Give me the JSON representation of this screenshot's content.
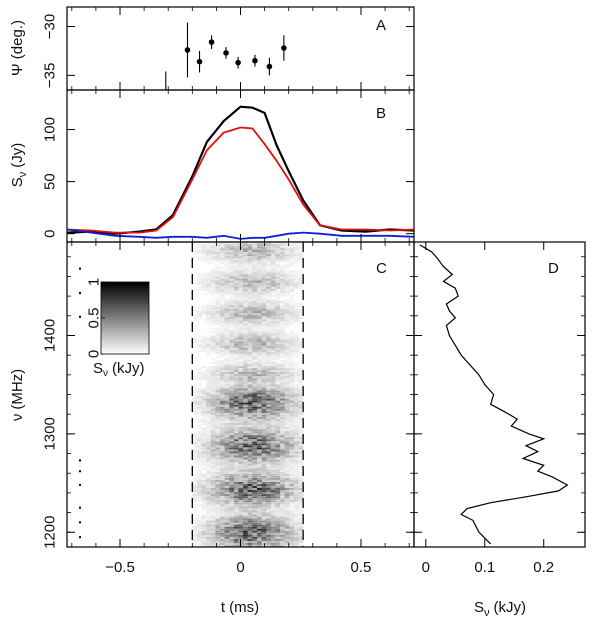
{
  "colors": {
    "total": "#000000",
    "linear": "#e01010",
    "circular": "#1020d0",
    "frame": "#000000"
  },
  "chart_data": [
    {
      "panel": "A",
      "type": "scatter",
      "xlabel": "",
      "ylabel": "Ψ (deg.)",
      "ylim": [
        -36.5,
        -28.0
      ],
      "yticks": [
        -30,
        -35
      ],
      "ytick_labels": [
        "−30",
        "−35"
      ],
      "points": [
        {
          "t": -0.22,
          "psi": -32.4,
          "err": 2.8
        },
        {
          "t": -0.17,
          "psi": -33.6,
          "err": 1.1
        },
        {
          "t": -0.12,
          "psi": -31.6,
          "err": 0.7
        },
        {
          "t": -0.06,
          "psi": -32.7,
          "err": 0.6
        },
        {
          "t": -0.01,
          "psi": -33.7,
          "err": 0.6
        },
        {
          "t": 0.06,
          "psi": -33.5,
          "err": 0.6
        },
        {
          "t": 0.12,
          "psi": -34.1,
          "err": 0.9
        },
        {
          "t": 0.18,
          "psi": -32.2,
          "err": 1.3
        }
      ]
    },
    {
      "panel": "B",
      "type": "line",
      "xlabel": "",
      "ylabel": "Sν (Jy)",
      "ylim": [
        -8,
        138
      ],
      "yticks": [
        0,
        50,
        100
      ],
      "ytick_labels": [
        "0",
        "50",
        "100"
      ],
      "x": [
        -0.72,
        -0.62,
        -0.52,
        -0.42,
        -0.35,
        -0.28,
        -0.2,
        -0.14,
        -0.07,
        0.0,
        0.05,
        0.1,
        0.15,
        0.2,
        0.26,
        0.33,
        0.42,
        0.52,
        0.62,
        0.72
      ],
      "series": [
        {
          "key": "total",
          "values": [
            1,
            2,
            0,
            2,
            4,
            18,
            55,
            88,
            108,
            122,
            121,
            116,
            85,
            60,
            32,
            8,
            3,
            2,
            4,
            3
          ]
        },
        {
          "key": "linear",
          "values": [
            4,
            3,
            1,
            1,
            3,
            16,
            52,
            80,
            97,
            102,
            101,
            86,
            70,
            52,
            28,
            8,
            4,
            4,
            3,
            4
          ]
        },
        {
          "key": "circular",
          "values": [
            4,
            1,
            -2,
            -3,
            -4,
            -3,
            -3,
            -4,
            -2,
            -5,
            -4,
            -4,
            -2,
            0,
            1,
            0,
            -2,
            -2,
            -2,
            -3
          ]
        }
      ]
    },
    {
      "panel": "C",
      "type": "heatmap",
      "xlabel": "t (ms)",
      "ylabel": "ν (MHz)",
      "xlim": [
        -0.72,
        0.72
      ],
      "ylim": [
        1185,
        1495
      ],
      "xticks": [
        -0.5,
        0,
        0.5
      ],
      "xtick_labels": [
        "−0.5",
        "0",
        "0.5"
      ],
      "yticks": [
        1200,
        1300,
        1400
      ],
      "ytick_labels": [
        "1200",
        "1300",
        "1400"
      ],
      "burst_window": [
        -0.2,
        0.26
      ],
      "dashed_lines": [
        -0.2,
        0.26
      ],
      "colorbar": {
        "label": "Sν (kJy)",
        "ticks": [
          0,
          0.5,
          1
        ],
        "tick_labels": [
          "0",
          "0.5",
          "1"
        ]
      }
    },
    {
      "panel": "D",
      "type": "line",
      "xlabel": "Sν (kJy)",
      "ylabel": "",
      "xlim": [
        -0.02,
        0.27
      ],
      "xticks": [
        0,
        0.1,
        0.2
      ],
      "xtick_labels": [
        "0",
        "0.1",
        "0.2"
      ],
      "spectrum": [
        {
          "nu": 1492,
          "s": -0.01
        },
        {
          "nu": 1485,
          "s": 0.01
        },
        {
          "nu": 1478,
          "s": 0.02
        },
        {
          "nu": 1470,
          "s": 0.03
        },
        {
          "nu": 1462,
          "s": 0.045
        },
        {
          "nu": 1455,
          "s": 0.03
        },
        {
          "nu": 1448,
          "s": 0.05
        },
        {
          "nu": 1440,
          "s": 0.055
        },
        {
          "nu": 1432,
          "s": 0.035
        },
        {
          "nu": 1425,
          "s": 0.04
        },
        {
          "nu": 1418,
          "s": 0.05
        },
        {
          "nu": 1410,
          "s": 0.035
        },
        {
          "nu": 1400,
          "s": 0.04
        },
        {
          "nu": 1390,
          "s": 0.05
        },
        {
          "nu": 1380,
          "s": 0.06
        },
        {
          "nu": 1370,
          "s": 0.075
        },
        {
          "nu": 1360,
          "s": 0.09
        },
        {
          "nu": 1350,
          "s": 0.1
        },
        {
          "nu": 1340,
          "s": 0.115
        },
        {
          "nu": 1330,
          "s": 0.11
        },
        {
          "nu": 1322,
          "s": 0.135
        },
        {
          "nu": 1315,
          "s": 0.155
        },
        {
          "nu": 1308,
          "s": 0.145
        },
        {
          "nu": 1300,
          "s": 0.175
        },
        {
          "nu": 1295,
          "s": 0.2
        },
        {
          "nu": 1288,
          "s": 0.17
        },
        {
          "nu": 1282,
          "s": 0.19
        },
        {
          "nu": 1275,
          "s": 0.165
        },
        {
          "nu": 1268,
          "s": 0.2
        },
        {
          "nu": 1262,
          "s": 0.19
        },
        {
          "nu": 1256,
          "s": 0.215
        },
        {
          "nu": 1248,
          "s": 0.24
        },
        {
          "nu": 1242,
          "s": 0.225
        },
        {
          "nu": 1236,
          "s": 0.17
        },
        {
          "nu": 1230,
          "s": 0.11
        },
        {
          "nu": 1224,
          "s": 0.07
        },
        {
          "nu": 1218,
          "s": 0.06
        },
        {
          "nu": 1212,
          "s": 0.08
        },
        {
          "nu": 1206,
          "s": 0.085
        },
        {
          "nu": 1200,
          "s": 0.09
        },
        {
          "nu": 1194,
          "s": 0.1
        },
        {
          "nu": 1188,
          "s": 0.11
        }
      ]
    }
  ],
  "panel_letters": {
    "a": "A",
    "b": "B",
    "c": "C",
    "d": "D"
  },
  "labels": {
    "psi": "Ψ (deg.)",
    "s_jy": "(Jy)",
    "nu_mhz": "(MHz)",
    "t_ms": "t (ms)",
    "s_kjy": "(kJy)",
    "s_symbol": "S",
    "nu_symbol": "ν"
  }
}
